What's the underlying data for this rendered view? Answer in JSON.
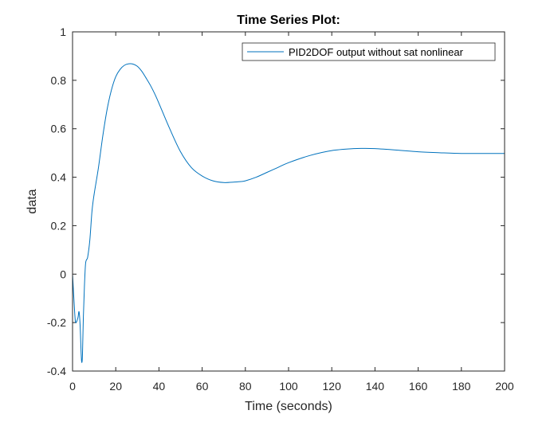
{
  "chart_data": {
    "type": "line",
    "title": "Time Series Plot:",
    "xlabel": "Time (seconds)",
    "ylabel": "data",
    "xlim": [
      0,
      200
    ],
    "ylim": [
      -0.4,
      1
    ],
    "xticks": [
      0,
      20,
      40,
      60,
      80,
      100,
      120,
      140,
      160,
      180,
      200
    ],
    "yticks": [
      -0.4,
      -0.2,
      0,
      0.2,
      0.4,
      0.6,
      0.8,
      1
    ],
    "x_tick_labels": [
      "0",
      "20",
      "40",
      "60",
      "80",
      "100",
      "120",
      "140",
      "160",
      "180",
      "200"
    ],
    "y_tick_labels": [
      "-0.4",
      "-0.2",
      "0",
      "0.2",
      "0.4",
      "0.6",
      "0.8",
      "1"
    ],
    "grid": false,
    "legend_position": "top-right",
    "series": [
      {
        "name": "PID2DOF output without sat nonlinear",
        "color": "#0072BD",
        "x": [
          0,
          1,
          1.5,
          2.5,
          3,
          3.5,
          4,
          4.3,
          4.6,
          5,
          5.5,
          6,
          6.5,
          7,
          8,
          9,
          10,
          12,
          14,
          16,
          18,
          20,
          22,
          24,
          26,
          28,
          30,
          32,
          34,
          36,
          38,
          40,
          45,
          50,
          55,
          60,
          65,
          70,
          75,
          78,
          80,
          85,
          90,
          95,
          100,
          110,
          120,
          130,
          135,
          140,
          150,
          160,
          170,
          180,
          190,
          200
        ],
        "y": [
          0,
          -0.16,
          -0.2,
          -0.18,
          -0.155,
          -0.21,
          -0.33,
          -0.365,
          -0.33,
          -0.18,
          -0.05,
          0.04,
          0.06,
          0.07,
          0.14,
          0.26,
          0.33,
          0.44,
          0.57,
          0.68,
          0.76,
          0.815,
          0.845,
          0.862,
          0.868,
          0.867,
          0.858,
          0.838,
          0.81,
          0.78,
          0.745,
          0.705,
          0.6,
          0.505,
          0.44,
          0.405,
          0.385,
          0.378,
          0.38,
          0.382,
          0.385,
          0.4,
          0.42,
          0.44,
          0.46,
          0.49,
          0.51,
          0.518,
          0.519,
          0.518,
          0.512,
          0.505,
          0.501,
          0.498,
          0.498,
          0.498
        ]
      }
    ]
  }
}
